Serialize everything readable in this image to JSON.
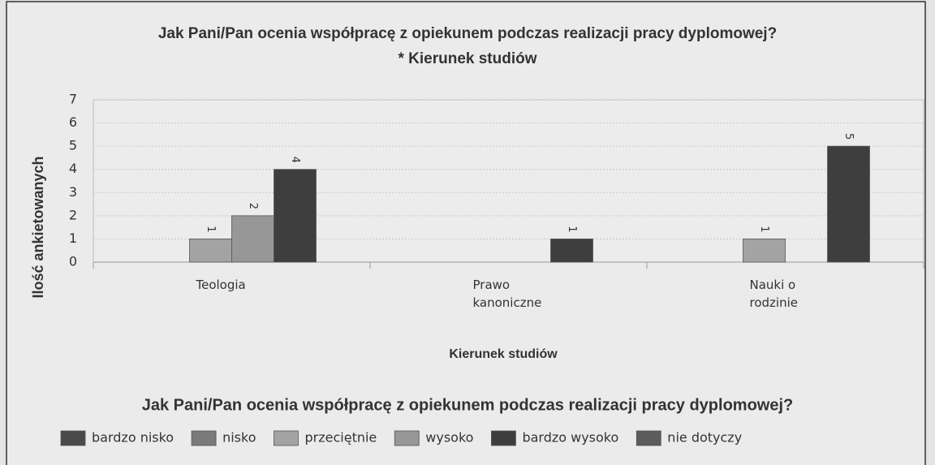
{
  "chart_data": {
    "type": "bar",
    "title": "Jak Pani/Pan ocenia współpracę z opiekunem podczas realizacji pracy dyplomowej?",
    "subtitle": "* Kierunek studiów",
    "x_label": "Kierunek studiów",
    "y_label": "Ilość ankietowanych",
    "legend_title": "Jak Pani/Pan ocenia współpracę z opiekunem podczas realizacji pracy dyplomowej?",
    "legend": "bottom",
    "grid": true,
    "categories": [
      "Teologia",
      "Prawo kanoniczne",
      "Nauki o rodzinie"
    ],
    "ylim": [
      0,
      7
    ],
    "yticks": [
      0,
      1,
      2,
      3,
      4,
      5,
      6,
      7
    ],
    "series": [
      {
        "name": "bardzo nisko",
        "color": "#4a4a4a",
        "values": [
          0,
          0,
          0
        ]
      },
      {
        "name": "nisko",
        "color": "#7a7a7a",
        "values": [
          0,
          0,
          0
        ]
      },
      {
        "name": "przeciętnie",
        "color": "#a3a3a3",
        "values": [
          1,
          0,
          1
        ]
      },
      {
        "name": "wysoko",
        "color": "#979797",
        "values": [
          2,
          0,
          0
        ]
      },
      {
        "name": "bardzo wysoko",
        "color": "#3e3e3e",
        "values": [
          4,
          1,
          5
        ]
      },
      {
        "name": "nie dotyczy",
        "color": "#5c5c5c",
        "values": [
          0,
          0,
          0
        ]
      }
    ]
  }
}
